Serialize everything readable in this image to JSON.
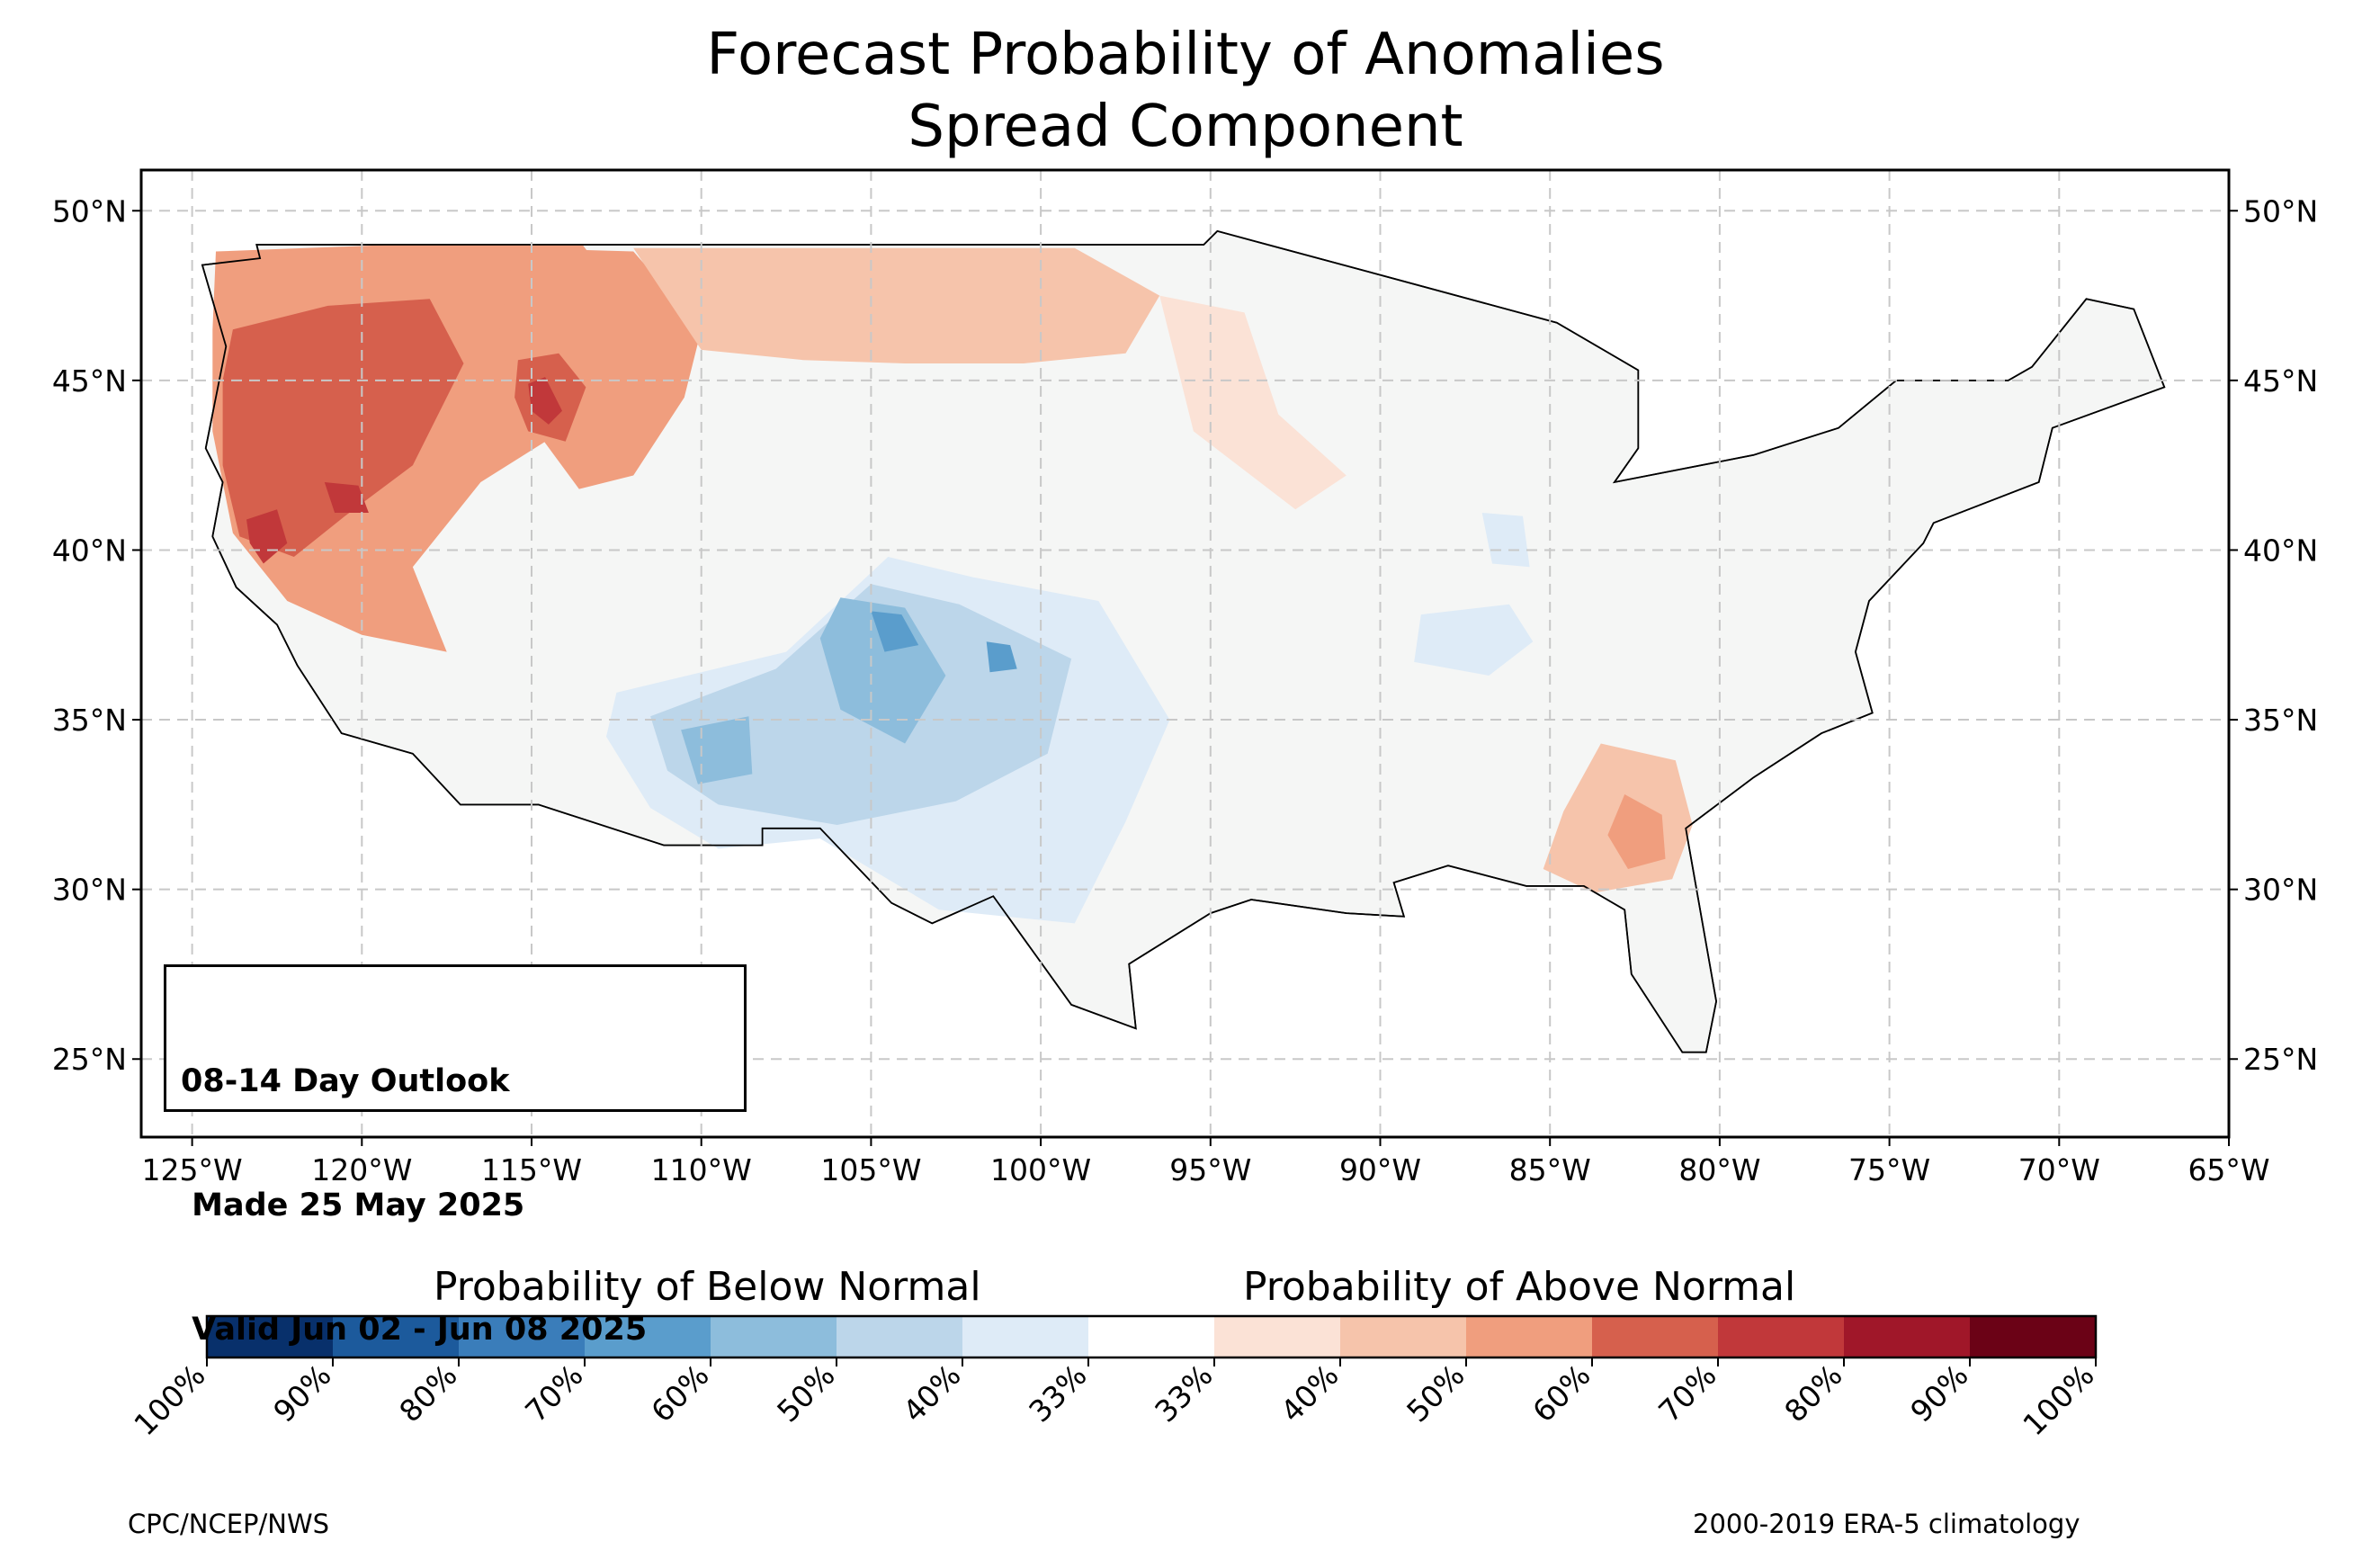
{
  "title": {
    "line1": "Forecast Probability of Anomalies",
    "line2": "Spread Component"
  },
  "map": {
    "projection": "equirectangular",
    "extent": {
      "lon_min": -126.5,
      "lon_max": -65,
      "lat_min": 22.7,
      "lat_max": 51.2
    },
    "longitude_ticks": [
      "125°W",
      "120°W",
      "115°W",
      "110°W",
      "105°W",
      "100°W",
      "95°W",
      "90°W",
      "85°W",
      "80°W",
      "75°W",
      "70°W",
      "65°W"
    ],
    "latitude_ticks": [
      "50°N",
      "45°N",
      "40°N",
      "35°N",
      "30°N",
      "25°N"
    ],
    "gridlines": true,
    "land_color": "#f5f6f5",
    "regions": [
      {
        "name": "Pacific Northwest above normal",
        "category": "above",
        "level": "50-60%",
        "color": "#f09e7e",
        "lonlat": [
          [
            -124.3,
            48.8
          ],
          [
            -119,
            49
          ],
          [
            -113.5,
            49
          ],
          [
            -112,
            47
          ],
          [
            -113,
            44.2
          ],
          [
            -116.5,
            42
          ],
          [
            -118.5,
            39.5
          ],
          [
            -117.5,
            37
          ],
          [
            -120,
            37.5
          ],
          [
            -122.2,
            38.5
          ],
          [
            -123.8,
            40.5
          ],
          [
            -124.4,
            43.5
          ],
          [
            -124.4,
            46.5
          ]
        ]
      },
      {
        "name": "Pacific Northwest core",
        "category": "above",
        "level": "60-70%",
        "color": "#d6604d",
        "lonlat": [
          [
            -123.8,
            46.5
          ],
          [
            -121,
            47.2
          ],
          [
            -118,
            47.4
          ],
          [
            -117,
            45.5
          ],
          [
            -118.5,
            42.5
          ],
          [
            -120.5,
            41
          ],
          [
            -122,
            39.8
          ],
          [
            -123.6,
            40.4
          ],
          [
            -124.1,
            42.5
          ],
          [
            -124.1,
            45
          ]
        ]
      },
      {
        "name": "Northern California max",
        "category": "above",
        "level": "70-80%",
        "color": "#c1383a",
        "lonlat": [
          [
            -123.4,
            40.9
          ],
          [
            -122.5,
            41.2
          ],
          [
            -122.2,
            40.2
          ],
          [
            -122.9,
            39.6
          ],
          [
            -123.3,
            40.2
          ]
        ]
      },
      {
        "name": "Northeast California max",
        "category": "above",
        "level": "70-80%",
        "color": "#c1383a",
        "lonlat": [
          [
            -121.1,
            42
          ],
          [
            -120.1,
            41.9
          ],
          [
            -119.8,
            41.1
          ],
          [
            -120.8,
            41.1
          ]
        ]
      },
      {
        "name": "Idaho / Montana",
        "category": "above",
        "level": "50-60%",
        "color": "#f09e7e",
        "lonlat": [
          [
            -115.5,
            48.9
          ],
          [
            -112,
            48.8
          ],
          [
            -110,
            46.5
          ],
          [
            -110.5,
            44.5
          ],
          [
            -112,
            42.2
          ],
          [
            -113.6,
            41.8
          ],
          [
            -115,
            43.7
          ],
          [
            -116,
            46.2
          ]
        ]
      },
      {
        "name": "Central Idaho max",
        "category": "above",
        "level": "60-70%",
        "color": "#d6604d",
        "lonlat": [
          [
            -115.4,
            45.6
          ],
          [
            -114.2,
            45.8
          ],
          [
            -113.4,
            44.8
          ],
          [
            -114,
            43.2
          ],
          [
            -115.1,
            43.5
          ],
          [
            -115.5,
            44.5
          ]
        ]
      },
      {
        "name": "Idaho inner max",
        "category": "above",
        "level": "70-80%",
        "color": "#c1383a",
        "lonlat": [
          [
            -115.1,
            44.9
          ],
          [
            -114.6,
            45.1
          ],
          [
            -114.1,
            44.1
          ],
          [
            -114.5,
            43.7
          ],
          [
            -115,
            44.1
          ]
        ]
      },
      {
        "name": "Northern Plains band",
        "category": "above",
        "level": "40-50%",
        "color": "#f6c4ab",
        "lonlat": [
          [
            -112,
            48.9
          ],
          [
            -99,
            48.9
          ],
          [
            -96.5,
            47.5
          ],
          [
            -97.5,
            45.8
          ],
          [
            -100.5,
            45.5
          ],
          [
            -104,
            45.5
          ],
          [
            -107,
            45.6
          ],
          [
            -110,
            45.9
          ]
        ]
      },
      {
        "name": "Minnesota / Iowa",
        "category": "above",
        "level": "33-40%",
        "color": "#fbe2d6",
        "lonlat": [
          [
            -96.5,
            47.5
          ],
          [
            -94,
            47
          ],
          [
            -93,
            44
          ],
          [
            -91,
            42.2
          ],
          [
            -92.5,
            41.2
          ],
          [
            -95.5,
            43.5
          ]
        ]
      },
      {
        "name": "Southeast",
        "category": "above",
        "level": "40-50%",
        "color": "#f6c4ab",
        "lonlat": [
          [
            -83.5,
            34.3
          ],
          [
            -81.3,
            33.8
          ],
          [
            -80.8,
            31.9
          ],
          [
            -81.4,
            30.3
          ],
          [
            -83.7,
            29.9
          ],
          [
            -85.2,
            30.6
          ],
          [
            -84.6,
            32.3
          ]
        ]
      },
      {
        "name": "Georgia core",
        "category": "above",
        "level": "50-60%",
        "color": "#f09e7e",
        "lonlat": [
          [
            -82.8,
            32.8
          ],
          [
            -81.7,
            32.2
          ],
          [
            -81.6,
            30.9
          ],
          [
            -82.7,
            30.6
          ],
          [
            -83.3,
            31.6
          ]
        ]
      },
      {
        "name": "Southwest",
        "category": "below",
        "level": "33-40%",
        "color": "#deebf7",
        "lonlat": [
          [
            -112.5,
            35.8
          ],
          [
            -107.5,
            37
          ],
          [
            -104.5,
            39.8
          ],
          [
            -102,
            39.2
          ],
          [
            -98.3,
            38.5
          ],
          [
            -96.2,
            35
          ],
          [
            -97.5,
            32
          ],
          [
            -99,
            29
          ],
          [
            -103,
            29.4
          ],
          [
            -106.5,
            31.5
          ],
          [
            -109.5,
            31.2
          ],
          [
            -111.5,
            32.4
          ],
          [
            -112.8,
            34.5
          ]
        ]
      },
      {
        "name": "Southwest core",
        "category": "below",
        "level": "40-50%",
        "color": "#bcd6ea",
        "lonlat": [
          [
            -111.5,
            35.1
          ],
          [
            -107.8,
            36.5
          ],
          [
            -105,
            39
          ],
          [
            -102.4,
            38.4
          ],
          [
            -99.1,
            36.8
          ],
          [
            -99.8,
            34
          ],
          [
            -102.5,
            32.6
          ],
          [
            -106,
            31.9
          ],
          [
            -109.5,
            32.5
          ],
          [
            -111,
            33.5
          ]
        ]
      },
      {
        "name": "Colorado / New Mexico max",
        "category": "below",
        "level": "50-60%",
        "color": "#8dbddc",
        "lonlat": [
          [
            -105.9,
            38.6
          ],
          [
            -104,
            38.3
          ],
          [
            -102.8,
            36.3
          ],
          [
            -104,
            34.3
          ],
          [
            -105.9,
            35.3
          ],
          [
            -106.5,
            37.4
          ]
        ]
      },
      {
        "name": "Arizona max",
        "category": "below",
        "level": "50-60%",
        "color": "#8dbddc",
        "lonlat": [
          [
            -110.6,
            34.7
          ],
          [
            -108.6,
            35.1
          ],
          [
            -108.5,
            33.4
          ],
          [
            -110.1,
            33.1
          ]
        ]
      },
      {
        "name": "Southeast Colorado max",
        "category": "below",
        "level": "60-70%",
        "color": "#5a9dcc",
        "lonlat": [
          [
            -105,
            38.2
          ],
          [
            -104.1,
            38.1
          ],
          [
            -103.6,
            37.2
          ],
          [
            -104.6,
            37
          ]
        ]
      },
      {
        "name": "Oklahoma panhandle max",
        "category": "below",
        "level": "60-70%",
        "color": "#5a9dcc",
        "lonlat": [
          [
            -101.6,
            37.3
          ],
          [
            -100.9,
            37.2
          ],
          [
            -100.7,
            36.5
          ],
          [
            -101.5,
            36.4
          ]
        ]
      },
      {
        "name": "Ohio Valley",
        "category": "below",
        "level": "33-40%",
        "color": "#deebf7",
        "lonlat": [
          [
            -88.8,
            38.1
          ],
          [
            -86.2,
            38.4
          ],
          [
            -85.5,
            37.3
          ],
          [
            -86.8,
            36.3
          ],
          [
            -89,
            36.7
          ]
        ]
      },
      {
        "name": "Indiana",
        "category": "below",
        "level": "33-40%",
        "color": "#deebf7",
        "lonlat": [
          [
            -87,
            41.1
          ],
          [
            -85.8,
            41
          ],
          [
            -85.6,
            39.5
          ],
          [
            -86.7,
            39.6
          ]
        ]
      }
    ],
    "land_outline_lonlat": [
      [
        -124.7,
        48.4
      ],
      [
        -123,
        48.6
      ],
      [
        -123.1,
        49
      ],
      [
        -95.2,
        49
      ],
      [
        -94.8,
        49.4
      ],
      [
        -89.6,
        48
      ],
      [
        -84.8,
        46.7
      ],
      [
        -82.4,
        45.3
      ],
      [
        -82.4,
        43
      ],
      [
        -83.1,
        42
      ],
      [
        -79,
        42.8
      ],
      [
        -76.5,
        43.6
      ],
      [
        -74.8,
        45
      ],
      [
        -71.5,
        45
      ],
      [
        -70.8,
        45.4
      ],
      [
        -69.2,
        47.4
      ],
      [
        -67.8,
        47.1
      ],
      [
        -66.9,
        44.8
      ],
      [
        -70.2,
        43.6
      ],
      [
        -70.6,
        42
      ],
      [
        -73.7,
        40.8
      ],
      [
        -74,
        40.2
      ],
      [
        -75.6,
        38.5
      ],
      [
        -76,
        37
      ],
      [
        -75.5,
        35.2
      ],
      [
        -77,
        34.6
      ],
      [
        -79,
        33.3
      ],
      [
        -81,
        31.8
      ],
      [
        -80.1,
        26.7
      ],
      [
        -80.4,
        25.2
      ],
      [
        -81.1,
        25.2
      ],
      [
        -82.6,
        27.5
      ],
      [
        -82.8,
        29.4
      ],
      [
        -84,
        30.1
      ],
      [
        -85.7,
        30.1
      ],
      [
        -88,
        30.7
      ],
      [
        -89.6,
        30.2
      ],
      [
        -89.3,
        29.2
      ],
      [
        -91,
        29.3
      ],
      [
        -93.8,
        29.7
      ],
      [
        -95,
        29.3
      ],
      [
        -97.4,
        27.8
      ],
      [
        -97.2,
        25.9
      ],
      [
        -99.1,
        26.6
      ],
      [
        -101.4,
        29.8
      ],
      [
        -103.2,
        29
      ],
      [
        -104.4,
        29.6
      ],
      [
        -106.5,
        31.8
      ],
      [
        -108.2,
        31.8
      ],
      [
        -108.2,
        31.3
      ],
      [
        -111.1,
        31.3
      ],
      [
        -114.8,
        32.5
      ],
      [
        -117.1,
        32.5
      ],
      [
        -118.5,
        34
      ],
      [
        -120.6,
        34.6
      ],
      [
        -121.9,
        36.6
      ],
      [
        -122.5,
        37.8
      ],
      [
        -123.7,
        38.9
      ],
      [
        -124.4,
        40.4
      ],
      [
        -124.1,
        42
      ],
      [
        -124.6,
        43
      ],
      [
        -124,
        46
      ],
      [
        -124.7,
        48.4
      ]
    ],
    "text_box": {
      "line1": "08-14 Day Outlook",
      "line2": " Made 25 May 2025",
      "line3": " Valid Jun 02 - Jun 08 2025"
    }
  },
  "colorbar": {
    "below_title": "Probability of Below Normal",
    "above_title": "Probability of Above Normal",
    "colors": [
      "#08306b",
      "#1c5a9c",
      "#3a7dba",
      "#5a9dcc",
      "#8dbddc",
      "#bcd6ea",
      "#deebf7",
      "#ffffff",
      "#fbe2d6",
      "#f6c4ab",
      "#f09e7e",
      "#d6604d",
      "#c1383a",
      "#a01729",
      "#6b0216"
    ],
    "tick_labels": [
      "100%",
      "90%",
      "80%",
      "70%",
      "60%",
      "50%",
      "40%",
      "33%",
      "33%",
      "40%",
      "50%",
      "60%",
      "70%",
      "80%",
      "90%",
      "100%"
    ]
  },
  "footer": {
    "left": "CPC/NCEP/NWS",
    "right": "2000-2019 ERA-5 climatology"
  }
}
